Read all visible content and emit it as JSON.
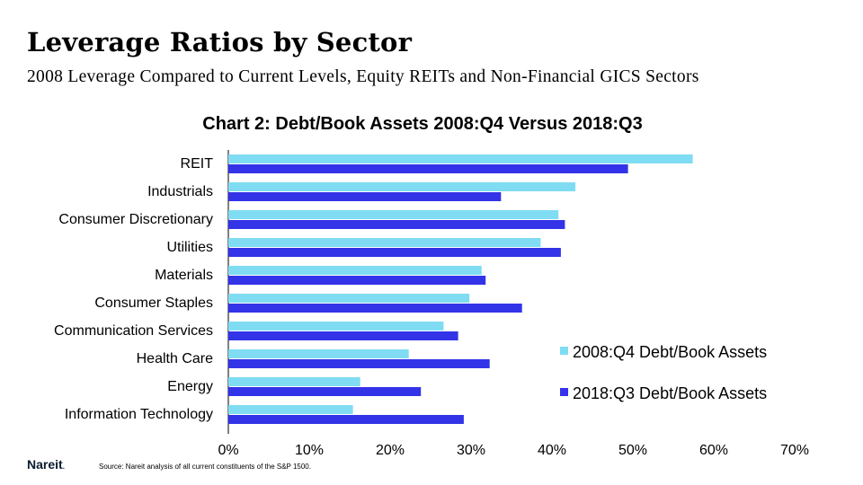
{
  "header": {
    "title": "Leverage Ratios by Sector",
    "subtitle": "2008 Leverage Compared to Current Levels, Equity REITs and Non-Financial GICS Sectors"
  },
  "footer": {
    "logo": "Nareit",
    "logo_mark": ".",
    "source": "Source:  Nareit analysis of all current constituents of the S&P 1500."
  },
  "chart_data": {
    "type": "bar",
    "orientation": "horizontal",
    "title": "Chart 2: Debt/Book Assets 2008:Q4  Versus 2018:Q3",
    "categories": [
      "REIT",
      "Industrials",
      "Consumer Discretionary",
      "Utilities",
      "Materials",
      "Consumer Staples",
      "Communication Services",
      "Health Care",
      "Energy",
      "Information Technology"
    ],
    "series": [
      {
        "name": "2008:Q4 Debt/Book Assets",
        "color": "#7fdcf2",
        "values": [
          57.4,
          42.9,
          40.8,
          38.6,
          31.3,
          29.8,
          26.6,
          22.3,
          16.3,
          15.4
        ]
      },
      {
        "name": "2018:Q3 Debt/Book Assets",
        "color": "#3333e8",
        "values": [
          49.4,
          33.7,
          41.6,
          41.1,
          31.8,
          36.3,
          28.4,
          32.3,
          23.8,
          29.1
        ]
      }
    ],
    "xlim": [
      0,
      70
    ],
    "x_ticks": [
      0,
      10,
      20,
      30,
      40,
      50,
      60,
      70
    ],
    "x_tick_labels": [
      "0%",
      "10%",
      "20%",
      "30%",
      "40%",
      "50%",
      "60%",
      "70%"
    ],
    "grid": false,
    "legend_position": "bottom-right"
  }
}
